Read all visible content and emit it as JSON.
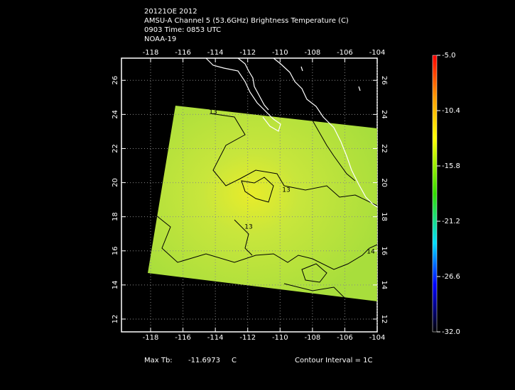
{
  "header": {
    "lines": [
      "20121OE 2012",
      "AMSU-A Channel 5 (53.6GHz) Brightness Temperature (C)",
      "0903 Time: 0853 UTC",
      "NOAA-19"
    ]
  },
  "map": {
    "lonlim": [
      -119.8,
      -104
    ],
    "latlim": [
      11.25,
      27.3
    ],
    "lon_ticks": [
      -118,
      -116,
      -114,
      -112,
      -110,
      -108,
      -106,
      -104
    ],
    "lat_ticks": [
      12,
      14,
      16,
      18,
      20,
      22,
      24,
      26
    ],
    "contour_labels": [
      "13",
      "13",
      "13",
      "14"
    ]
  },
  "colorbar": {
    "ticks": [
      {
        "value": -5,
        "label": "-5.0"
      },
      -10.4,
      -15.8,
      -21.2,
      -26.6,
      {
        "value": -32,
        "label": "-32.0"
      }
    ]
  },
  "footer": {
    "max_label": "Max Tb:",
    "max_value": -11.6973,
    "max_unit": "C",
    "contour": "Contour Interval = 1C"
  }
}
